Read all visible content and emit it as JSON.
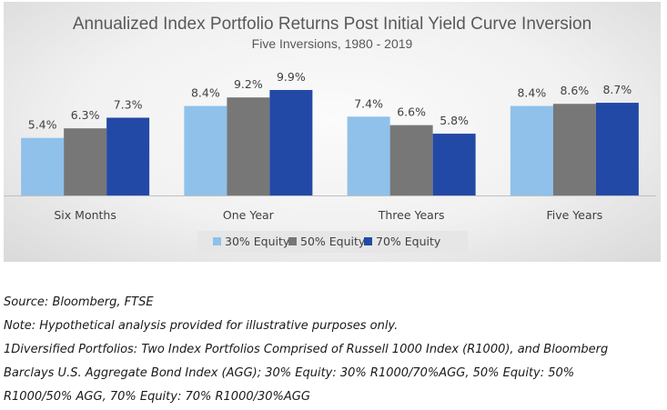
{
  "chart_data": {
    "type": "bar",
    "title": "Annualized Index Portfolio Returns Post Initial Yield Curve Inversion",
    "subtitle": "Five Inversions, 1980 - 2019",
    "categories": [
      "Six Months",
      "One Year",
      "Three Years",
      "Five Years"
    ],
    "series": [
      {
        "name": "30% Equity",
        "values": [
          5.4,
          8.4,
          7.4,
          8.4
        ],
        "labels": [
          "5.4%",
          "8.4%",
          "7.4%",
          "8.4%"
        ],
        "color": "#8fc1ea"
      },
      {
        "name": "50% Equity",
        "values": [
          6.3,
          9.2,
          6.6,
          8.6
        ],
        "labels": [
          "6.3%",
          "9.2%",
          "6.6%",
          "8.6%"
        ],
        "color": "#777777"
      },
      {
        "name": "70% Equity",
        "values": [
          7.3,
          9.9,
          5.8,
          8.7
        ],
        "labels": [
          "7.3%",
          "9.9%",
          "5.8%",
          "8.7%"
        ],
        "color": "#2349a6"
      }
    ],
    "ylim": [
      0,
      10
    ],
    "grid": false,
    "legend": "bottom"
  },
  "notes": [
    "Source: Bloomberg, FTSE",
    "Note: Hypothetical analysis provided for illustrative purposes only.",
    "1Diversified Portfolios: Two Index Portfolios Comprised of Russell 1000 Index (R1000), and Bloomberg",
    "Barclays U.S. Aggregate Bond Index (AGG); 30% Equity: 30% R1000/70%AGG, 50% Equity: 50%",
    "R1000/50% AGG, 70% Equity: 70% R1000/30%AGG"
  ]
}
